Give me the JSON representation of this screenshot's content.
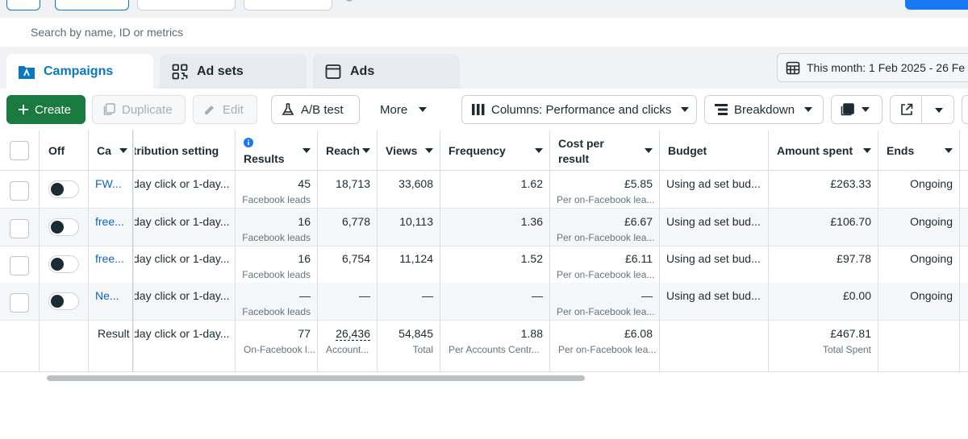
{
  "search": {
    "placeholder": "Search by name, ID or metrics"
  },
  "tabs": [
    {
      "label": "Campaigns",
      "icon": "folder-icon",
      "active": true
    },
    {
      "label": "Ad sets",
      "icon": "grid-icon",
      "active": false
    },
    {
      "label": "Ads",
      "icon": "ad-window-icon",
      "active": false
    }
  ],
  "date_range": "This month: 1 Feb 2025 - 26 Fe",
  "toolbar": {
    "create": "Create",
    "duplicate": "Duplicate",
    "edit": "Edit",
    "ab_test": "A/B test",
    "more": "More",
    "columns": "Columns: Performance and clicks",
    "breakdown": "Breakdown"
  },
  "columns": {
    "off": "Off",
    "campaign": "Ca",
    "attribution": "ttribution setting",
    "results": "Results",
    "reach": "Reach",
    "views": "Views",
    "frequency": "Frequency",
    "cost_per_result_1": "Cost per",
    "cost_per_result_2": "result",
    "budget": "Budget",
    "amount_spent": "Amount spent",
    "ends": "Ends"
  },
  "rows": [
    {
      "name": "FW...",
      "attribution": "day click or 1-day...",
      "results": "45",
      "results_sub": "Facebook leads",
      "reach": "18,713",
      "views": "33,608",
      "frequency": "1.62",
      "cost": "£5.85",
      "cost_sub": "Per on-Facebook lea...",
      "budget": "Using ad set bud...",
      "spent": "£263.33",
      "ends": "Ongoing"
    },
    {
      "name": "free...",
      "attribution": "day click or 1-day...",
      "results": "16",
      "results_sub": "Facebook leads",
      "reach": "6,778",
      "views": "10,113",
      "frequency": "1.36",
      "cost": "£6.67",
      "cost_sub": "Per on-Facebook lea...",
      "budget": "Using ad set bud...",
      "spent": "£106.70",
      "ends": "Ongoing"
    },
    {
      "name": "free...",
      "attribution": "day click or 1-day...",
      "results": "16",
      "results_sub": "Facebook leads",
      "reach": "6,754",
      "views": "11,124",
      "frequency": "1.52",
      "cost": "£6.11",
      "cost_sub": "Per on-Facebook lea...",
      "budget": "Using ad set bud...",
      "spent": "£97.78",
      "ends": "Ongoing"
    },
    {
      "name": "Ne...",
      "attribution": "day click or 1-day...",
      "results": "—",
      "results_sub": "Facebook leads",
      "reach": "—",
      "views": "—",
      "frequency": "—",
      "cost": "—",
      "cost_sub": "Per on-Facebook lea...",
      "budget": "Using ad set bud...",
      "spent": "£0.00",
      "ends": "Ongoing"
    }
  ],
  "summary": {
    "label": "Result",
    "attribution": "day click or 1-day...",
    "results": "77",
    "results_sub": "On-Facebook l...",
    "reach": "26,436",
    "reach_sub": "Account...",
    "views": "54,845",
    "views_sub": "Total",
    "frequency": "1.88",
    "frequency_sub": "Per Accounts Centr...",
    "cost": "£6.08",
    "cost_sub": "Per on-Facebook lea...",
    "spent": "£467.81",
    "spent_sub": "Total Spent"
  },
  "colors": {
    "accent": "#0a78be",
    "create": "#1b7a3e",
    "link": "#0a66c2"
  }
}
